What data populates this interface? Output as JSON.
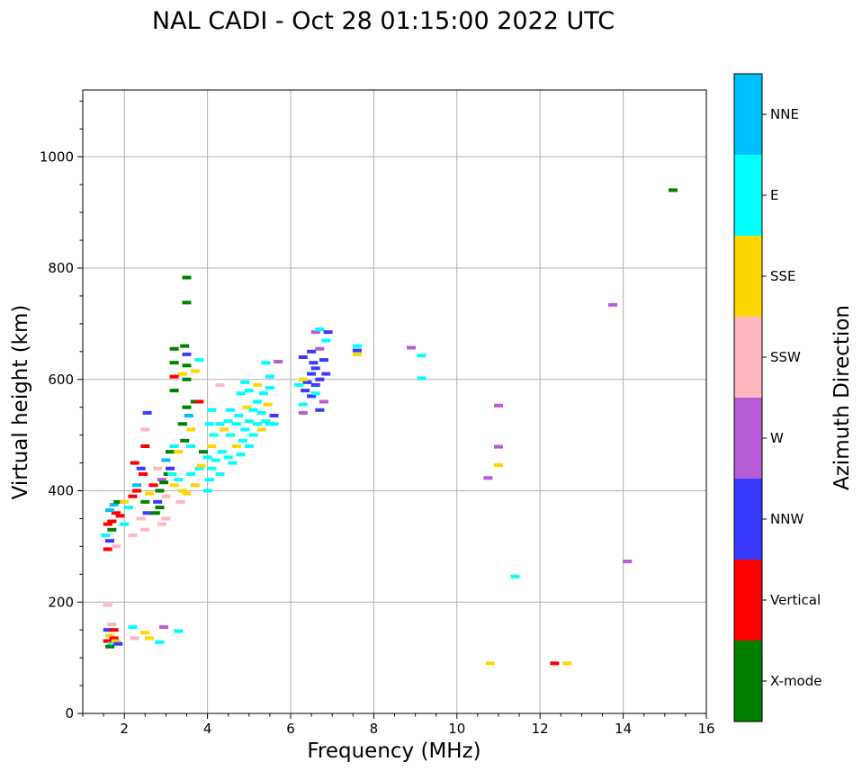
{
  "chart_data": {
    "type": "scatter",
    "title": "NAL CADI - Oct 28 01:15:00 2022 UTC",
    "xlabel": "Frequency (MHz)",
    "ylabel": "Virtual height (km)",
    "xlim": [
      1,
      16
    ],
    "ylim": [
      0,
      1120
    ],
    "xticks": [
      2,
      4,
      6,
      8,
      10,
      12,
      14,
      16
    ],
    "yticks": [
      0,
      200,
      400,
      600,
      800,
      1000
    ],
    "xminor_step": 0.5,
    "yminor_step": 50,
    "grid": true,
    "colorbar": {
      "label": "Azimuth Direction",
      "categories": [
        "X-mode",
        "Vertical",
        "NNW",
        "W",
        "SSW",
        "SSE",
        "E",
        "NNE"
      ],
      "colors": [
        "#008000",
        "#ff0000",
        "#3a3aff",
        "#b65cd6",
        "#ffb6c1",
        "#ffd700",
        "#00ffff",
        "#00bfff"
      ]
    },
    "points": [
      {
        "x": 1.6,
        "y": 130,
        "dir": "Vertical"
      },
      {
        "x": 1.65,
        "y": 140,
        "dir": "SSE"
      },
      {
        "x": 1.7,
        "y": 125,
        "dir": "E"
      },
      {
        "x": 1.6,
        "y": 150,
        "dir": "NNW"
      },
      {
        "x": 1.75,
        "y": 135,
        "dir": "Vertical"
      },
      {
        "x": 1.7,
        "y": 160,
        "dir": "SSW"
      },
      {
        "x": 1.6,
        "y": 195,
        "dir": "SSW"
      },
      {
        "x": 1.8,
        "y": 130,
        "dir": "SSE"
      },
      {
        "x": 1.65,
        "y": 120,
        "dir": "X-mode"
      },
      {
        "x": 1.75,
        "y": 150,
        "dir": "Vertical"
      },
      {
        "x": 2.2,
        "y": 155,
        "dir": "E"
      },
      {
        "x": 2.25,
        "y": 135,
        "dir": "SSW"
      },
      {
        "x": 2.5,
        "y": 145,
        "dir": "SSE"
      },
      {
        "x": 2.6,
        "y": 135,
        "dir": "SSE"
      },
      {
        "x": 2.85,
        "y": 128,
        "dir": "E"
      },
      {
        "x": 2.95,
        "y": 155,
        "dir": "W"
      },
      {
        "x": 3.3,
        "y": 148,
        "dir": "E"
      },
      {
        "x": 1.85,
        "y": 125,
        "dir": "NNW"
      },
      {
        "x": 1.6,
        "y": 295,
        "dir": "Vertical"
      },
      {
        "x": 1.65,
        "y": 310,
        "dir": "NNW"
      },
      {
        "x": 1.7,
        "y": 330,
        "dir": "X-mode"
      },
      {
        "x": 1.55,
        "y": 320,
        "dir": "E"
      },
      {
        "x": 1.7,
        "y": 345,
        "dir": "Vertical"
      },
      {
        "x": 1.8,
        "y": 360,
        "dir": "Vertical"
      },
      {
        "x": 1.6,
        "y": 340,
        "dir": "Vertical"
      },
      {
        "x": 1.75,
        "y": 375,
        "dir": "NNE"
      },
      {
        "x": 1.85,
        "y": 380,
        "dir": "X-mode"
      },
      {
        "x": 1.9,
        "y": 355,
        "dir": "Vertical"
      },
      {
        "x": 1.8,
        "y": 300,
        "dir": "SSW"
      },
      {
        "x": 1.65,
        "y": 365,
        "dir": "NNE"
      },
      {
        "x": 2.0,
        "y": 340,
        "dir": "E"
      },
      {
        "x": 2.1,
        "y": 370,
        "dir": "E"
      },
      {
        "x": 2.2,
        "y": 390,
        "dir": "Vertical"
      },
      {
        "x": 2.3,
        "y": 400,
        "dir": "Vertical"
      },
      {
        "x": 2.2,
        "y": 320,
        "dir": "SSW"
      },
      {
        "x": 2.3,
        "y": 410,
        "dir": "NNE"
      },
      {
        "x": 2.4,
        "y": 350,
        "dir": "SSW"
      },
      {
        "x": 2.45,
        "y": 430,
        "dir": "Vertical"
      },
      {
        "x": 2.5,
        "y": 380,
        "dir": "X-mode"
      },
      {
        "x": 2.4,
        "y": 440,
        "dir": "NNW"
      },
      {
        "x": 2.55,
        "y": 360,
        "dir": "NNW"
      },
      {
        "x": 2.5,
        "y": 330,
        "dir": "SSW"
      },
      {
        "x": 2.6,
        "y": 395,
        "dir": "SSE"
      },
      {
        "x": 2.5,
        "y": 480,
        "dir": "Vertical"
      },
      {
        "x": 2.5,
        "y": 510,
        "dir": "SSW"
      },
      {
        "x": 2.55,
        "y": 540,
        "dir": "NNW"
      },
      {
        "x": 2.25,
        "y": 450,
        "dir": "Vertical"
      },
      {
        "x": 2.0,
        "y": 380,
        "dir": "SSE"
      },
      {
        "x": 2.75,
        "y": 360,
        "dir": "X-mode"
      },
      {
        "x": 2.8,
        "y": 380,
        "dir": "NNW"
      },
      {
        "x": 2.85,
        "y": 400,
        "dir": "X-mode"
      },
      {
        "x": 2.9,
        "y": 420,
        "dir": "W"
      },
      {
        "x": 2.8,
        "y": 440,
        "dir": "SSW"
      },
      {
        "x": 2.95,
        "y": 415,
        "dir": "X-mode"
      },
      {
        "x": 3.0,
        "y": 390,
        "dir": "SSW"
      },
      {
        "x": 3.05,
        "y": 430,
        "dir": "X-mode"
      },
      {
        "x": 3.0,
        "y": 455,
        "dir": "NNE"
      },
      {
        "x": 3.1,
        "y": 470,
        "dir": "X-mode"
      },
      {
        "x": 3.0,
        "y": 350,
        "dir": "SSW"
      },
      {
        "x": 2.9,
        "y": 340,
        "dir": "SSW"
      },
      {
        "x": 2.7,
        "y": 410,
        "dir": "Vertical"
      },
      {
        "x": 2.85,
        "y": 370,
        "dir": "X-mode"
      },
      {
        "x": 3.15,
        "y": 430,
        "dir": "E"
      },
      {
        "x": 3.2,
        "y": 410,
        "dir": "SSE"
      },
      {
        "x": 3.1,
        "y": 440,
        "dir": "NNW"
      },
      {
        "x": 3.3,
        "y": 420,
        "dir": "E"
      },
      {
        "x": 3.35,
        "y": 380,
        "dir": "SSW"
      },
      {
        "x": 3.4,
        "y": 400,
        "dir": "SSE"
      },
      {
        "x": 3.5,
        "y": 395,
        "dir": "SSE"
      },
      {
        "x": 3.6,
        "y": 430,
        "dir": "E"
      },
      {
        "x": 3.7,
        "y": 410,
        "dir": "SSE"
      },
      {
        "x": 3.8,
        "y": 440,
        "dir": "E"
      },
      {
        "x": 3.2,
        "y": 480,
        "dir": "E"
      },
      {
        "x": 3.3,
        "y": 470,
        "dir": "SSE"
      },
      {
        "x": 3.45,
        "y": 490,
        "dir": "X-mode"
      },
      {
        "x": 3.6,
        "y": 480,
        "dir": "E"
      },
      {
        "x": 3.4,
        "y": 520,
        "dir": "X-mode"
      },
      {
        "x": 3.55,
        "y": 535,
        "dir": "NNE"
      },
      {
        "x": 3.5,
        "y": 550,
        "dir": "X-mode"
      },
      {
        "x": 3.7,
        "y": 560,
        "dir": "X-mode"
      },
      {
        "x": 3.8,
        "y": 560,
        "dir": "Vertical"
      },
      {
        "x": 3.2,
        "y": 580,
        "dir": "X-mode"
      },
      {
        "x": 3.5,
        "y": 600,
        "dir": "X-mode"
      },
      {
        "x": 3.4,
        "y": 610,
        "dir": "SSE"
      },
      {
        "x": 3.2,
        "y": 605,
        "dir": "Vertical"
      },
      {
        "x": 3.5,
        "y": 625,
        "dir": "X-mode"
      },
      {
        "x": 3.7,
        "y": 615,
        "dir": "SSE"
      },
      {
        "x": 3.8,
        "y": 635,
        "dir": "E"
      },
      {
        "x": 3.2,
        "y": 630,
        "dir": "X-mode"
      },
      {
        "x": 3.2,
        "y": 655,
        "dir": "X-mode"
      },
      {
        "x": 3.5,
        "y": 645,
        "dir": "NNW"
      },
      {
        "x": 3.45,
        "y": 660,
        "dir": "X-mode"
      },
      {
        "x": 3.5,
        "y": 738,
        "dir": "X-mode"
      },
      {
        "x": 3.5,
        "y": 783,
        "dir": "X-mode"
      },
      {
        "x": 3.6,
        "y": 510,
        "dir": "SSE"
      },
      {
        "x": 3.85,
        "y": 445,
        "dir": "SSE"
      },
      {
        "x": 3.9,
        "y": 470,
        "dir": "X-mode"
      },
      {
        "x": 4.0,
        "y": 400,
        "dir": "E"
      },
      {
        "x": 4.05,
        "y": 420,
        "dir": "E"
      },
      {
        "x": 4.1,
        "y": 440,
        "dir": "E"
      },
      {
        "x": 4.0,
        "y": 460,
        "dir": "E"
      },
      {
        "x": 4.1,
        "y": 480,
        "dir": "SSE"
      },
      {
        "x": 4.15,
        "y": 500,
        "dir": "E"
      },
      {
        "x": 4.05,
        "y": 520,
        "dir": "E"
      },
      {
        "x": 4.2,
        "y": 455,
        "dir": "E"
      },
      {
        "x": 4.3,
        "y": 430,
        "dir": "E"
      },
      {
        "x": 4.35,
        "y": 470,
        "dir": "E"
      },
      {
        "x": 4.4,
        "y": 510,
        "dir": "SSE"
      },
      {
        "x": 4.5,
        "y": 460,
        "dir": "E"
      },
      {
        "x": 4.55,
        "y": 500,
        "dir": "E"
      },
      {
        "x": 4.5,
        "y": 525,
        "dir": "E"
      },
      {
        "x": 4.6,
        "y": 450,
        "dir": "E"
      },
      {
        "x": 4.7,
        "y": 480,
        "dir": "SSE"
      },
      {
        "x": 4.7,
        "y": 520,
        "dir": "E"
      },
      {
        "x": 4.8,
        "y": 465,
        "dir": "E"
      },
      {
        "x": 4.85,
        "y": 490,
        "dir": "E"
      },
      {
        "x": 4.9,
        "y": 510,
        "dir": "E"
      },
      {
        "x": 4.75,
        "y": 535,
        "dir": "E"
      },
      {
        "x": 4.95,
        "y": 550,
        "dir": "SSE"
      },
      {
        "x": 5.0,
        "y": 480,
        "dir": "E"
      },
      {
        "x": 5.0,
        "y": 525,
        "dir": "E"
      },
      {
        "x": 5.1,
        "y": 500,
        "dir": "E"
      },
      {
        "x": 5.1,
        "y": 545,
        "dir": "E"
      },
      {
        "x": 5.2,
        "y": 520,
        "dir": "E"
      },
      {
        "x": 5.2,
        "y": 560,
        "dir": "E"
      },
      {
        "x": 5.3,
        "y": 510,
        "dir": "SSE"
      },
      {
        "x": 5.3,
        "y": 540,
        "dir": "E"
      },
      {
        "x": 5.35,
        "y": 575,
        "dir": "E"
      },
      {
        "x": 5.4,
        "y": 525,
        "dir": "E"
      },
      {
        "x": 5.45,
        "y": 555,
        "dir": "SSE"
      },
      {
        "x": 5.5,
        "y": 520,
        "dir": "E"
      },
      {
        "x": 5.5,
        "y": 585,
        "dir": "E"
      },
      {
        "x": 5.6,
        "y": 535,
        "dir": "NNW"
      },
      {
        "x": 5.6,
        "y": 520,
        "dir": "E"
      },
      {
        "x": 5.7,
        "y": 632,
        "dir": "W"
      },
      {
        "x": 5.4,
        "y": 630,
        "dir": "E"
      },
      {
        "x": 5.5,
        "y": 605,
        "dir": "E"
      },
      {
        "x": 5.0,
        "y": 580,
        "dir": "E"
      },
      {
        "x": 4.8,
        "y": 575,
        "dir": "E"
      },
      {
        "x": 4.3,
        "y": 520,
        "dir": "E"
      },
      {
        "x": 4.3,
        "y": 590,
        "dir": "SSW"
      },
      {
        "x": 4.9,
        "y": 595,
        "dir": "E"
      },
      {
        "x": 5.2,
        "y": 590,
        "dir": "SSE"
      },
      {
        "x": 4.55,
        "y": 545,
        "dir": "E"
      },
      {
        "x": 4.1,
        "y": 545,
        "dir": "E"
      },
      {
        "x": 6.3,
        "y": 540,
        "dir": "W"
      },
      {
        "x": 6.3,
        "y": 555,
        "dir": "E"
      },
      {
        "x": 6.35,
        "y": 580,
        "dir": "NNW"
      },
      {
        "x": 6.4,
        "y": 595,
        "dir": "NNW"
      },
      {
        "x": 6.5,
        "y": 570,
        "dir": "NNW"
      },
      {
        "x": 6.5,
        "y": 610,
        "dir": "NNW"
      },
      {
        "x": 6.55,
        "y": 630,
        "dir": "NNW"
      },
      {
        "x": 6.6,
        "y": 590,
        "dir": "NNW"
      },
      {
        "x": 6.6,
        "y": 620,
        "dir": "NNW"
      },
      {
        "x": 6.7,
        "y": 600,
        "dir": "NNW"
      },
      {
        "x": 6.7,
        "y": 545,
        "dir": "NNW"
      },
      {
        "x": 6.8,
        "y": 560,
        "dir": "W"
      },
      {
        "x": 6.85,
        "y": 610,
        "dir": "NNW"
      },
      {
        "x": 6.8,
        "y": 635,
        "dir": "NNW"
      },
      {
        "x": 6.7,
        "y": 655,
        "dir": "W"
      },
      {
        "x": 6.85,
        "y": 670,
        "dir": "E"
      },
      {
        "x": 6.6,
        "y": 685,
        "dir": "W"
      },
      {
        "x": 6.7,
        "y": 690,
        "dir": "E"
      },
      {
        "x": 6.9,
        "y": 685,
        "dir": "NNW"
      },
      {
        "x": 6.3,
        "y": 640,
        "dir": "NNW"
      },
      {
        "x": 6.5,
        "y": 650,
        "dir": "NNW"
      },
      {
        "x": 6.6,
        "y": 575,
        "dir": "E"
      },
      {
        "x": 6.3,
        "y": 600,
        "dir": "SSE"
      },
      {
        "x": 6.2,
        "y": 590,
        "dir": "E"
      },
      {
        "x": 7.6,
        "y": 645,
        "dir": "SSE"
      },
      {
        "x": 7.6,
        "y": 652,
        "dir": "NNW"
      },
      {
        "x": 7.6,
        "y": 660,
        "dir": "E"
      },
      {
        "x": 8.9,
        "y": 657,
        "dir": "W"
      },
      {
        "x": 9.15,
        "y": 643,
        "dir": "E"
      },
      {
        "x": 9.15,
        "y": 602,
        "dir": "E"
      },
      {
        "x": 11.0,
        "y": 553,
        "dir": "W"
      },
      {
        "x": 11.0,
        "y": 479,
        "dir": "W"
      },
      {
        "x": 11.0,
        "y": 446,
        "dir": "SSE"
      },
      {
        "x": 10.75,
        "y": 423,
        "dir": "W"
      },
      {
        "x": 11.4,
        "y": 246,
        "dir": "E"
      },
      {
        "x": 14.1,
        "y": 273,
        "dir": "W"
      },
      {
        "x": 13.75,
        "y": 734,
        "dir": "W"
      },
      {
        "x": 10.8,
        "y": 90,
        "dir": "SSE"
      },
      {
        "x": 12.35,
        "y": 90,
        "dir": "Vertical"
      },
      {
        "x": 12.65,
        "y": 90,
        "dir": "SSE"
      },
      {
        "x": 15.2,
        "y": 940,
        "dir": "X-mode"
      }
    ]
  }
}
